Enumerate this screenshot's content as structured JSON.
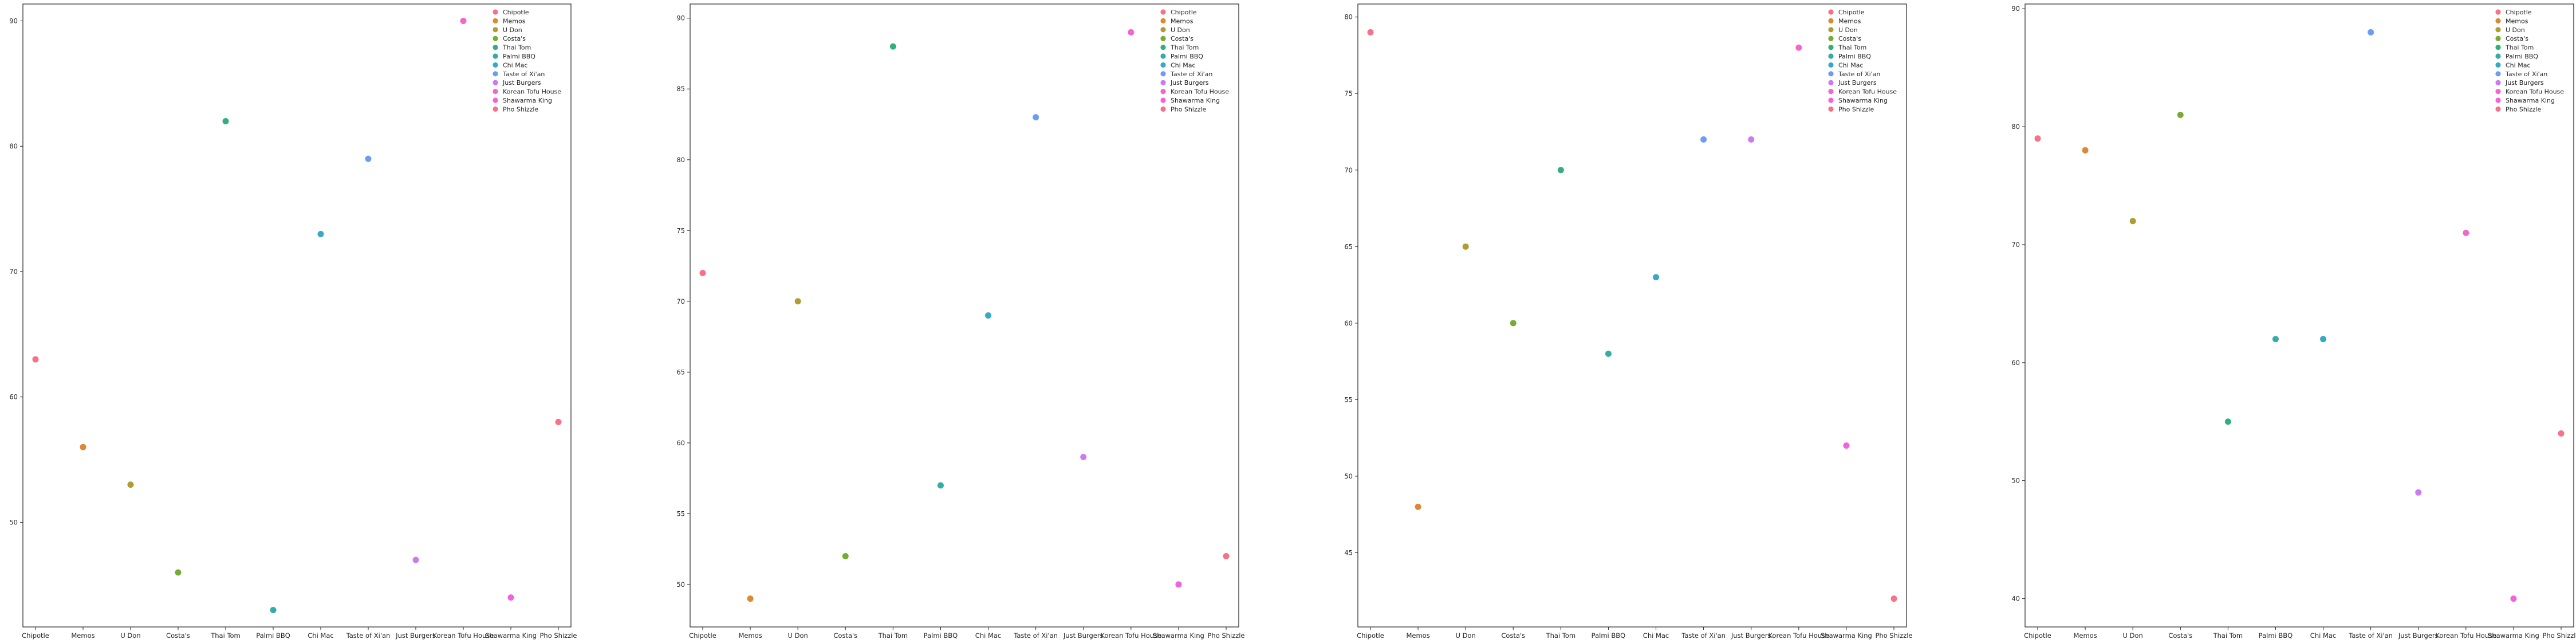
{
  "colors": [
    "#f77189",
    "#dc8932",
    "#ae9d31",
    "#77ab31",
    "#33b07a",
    "#36ada4",
    "#38a9c5",
    "#6e9bf4",
    "#cc7af4",
    "#f565cc",
    "#f561dd"
  ],
  "chart_data": [
    {
      "type": "scatter",
      "title": "",
      "xlabel": "",
      "ylabel": "",
      "categories": [
        "Chipotle",
        "Memos",
        "U Don",
        "Costa's",
        "Thai Tom",
        "Palmi BBQ",
        "Chi Mac",
        "Taste of Xi'an",
        "Just Burgers",
        "Korean Tofu House",
        "Shawarma King",
        "Pho Shizzle"
      ],
      "series": [
        {
          "name": "Chipotle",
          "x": "Chipotle",
          "y": 63
        },
        {
          "name": "Memos",
          "x": "Memos",
          "y": 56
        },
        {
          "name": "U Don",
          "x": "U Don",
          "y": 53
        },
        {
          "name": "Costa's",
          "x": "Costa's",
          "y": 46
        },
        {
          "name": "Thai Tom",
          "x": "Thai Tom",
          "y": 82
        },
        {
          "name": "Palmi BBQ",
          "x": "Palmi BBQ",
          "y": 43
        },
        {
          "name": "Chi Mac",
          "x": "Chi Mac",
          "y": 73
        },
        {
          "name": "Taste of Xi'an",
          "x": "Taste of Xi'an",
          "y": 79
        },
        {
          "name": "Just Burgers",
          "x": "Just Burgers",
          "y": 47
        },
        {
          "name": "Korean Tofu House",
          "x": "Korean Tofu House",
          "y": 90
        },
        {
          "name": "Shawarma King",
          "x": "Shawarma King",
          "y": 44
        },
        {
          "name": "Pho Shizzle",
          "x": "Pho Shizzle",
          "y": 58
        }
      ],
      "yticks": [
        50,
        60,
        70,
        80,
        90
      ],
      "ylim": [
        41.65,
        91.35
      ],
      "legend": "top-right",
      "grid": false
    },
    {
      "type": "scatter",
      "title": "",
      "xlabel": "",
      "ylabel": "",
      "categories": [
        "Chipotle",
        "Memos",
        "U Don",
        "Costa's",
        "Thai Tom",
        "Palmi BBQ",
        "Chi Mac",
        "Taste of Xi'an",
        "Just Burgers",
        "Korean Tofu House",
        "Shawarma King",
        "Pho Shizzle"
      ],
      "series": [
        {
          "name": "Chipotle",
          "x": "Chipotle",
          "y": 72
        },
        {
          "name": "Memos",
          "x": "Memos",
          "y": 49
        },
        {
          "name": "U Don",
          "x": "U Don",
          "y": 70
        },
        {
          "name": "Costa's",
          "x": "Costa's",
          "y": 52
        },
        {
          "name": "Thai Tom",
          "x": "Thai Tom",
          "y": 88
        },
        {
          "name": "Palmi BBQ",
          "x": "Palmi BBQ",
          "y": 57
        },
        {
          "name": "Chi Mac",
          "x": "Chi Mac",
          "y": 69
        },
        {
          "name": "Taste of Xi'an",
          "x": "Taste of Xi'an",
          "y": 83
        },
        {
          "name": "Just Burgers",
          "x": "Just Burgers",
          "y": 59
        },
        {
          "name": "Korean Tofu House",
          "x": "Korean Tofu House",
          "y": 89
        },
        {
          "name": "Shawarma King",
          "x": "Shawarma King",
          "y": 50
        },
        {
          "name": "Pho Shizzle",
          "x": "Pho Shizzle",
          "y": 52
        }
      ],
      "yticks": [
        50,
        55,
        60,
        65,
        70,
        75,
        80,
        85,
        90
      ],
      "ylim": [
        47.0,
        91.0
      ],
      "legend": "top-right",
      "grid": false
    },
    {
      "type": "scatter",
      "title": "",
      "xlabel": "",
      "ylabel": "",
      "categories": [
        "Chipotle",
        "Memos",
        "U Don",
        "Costa's",
        "Thai Tom",
        "Palmi BBQ",
        "Chi Mac",
        "Taste of Xi'an",
        "Just Burgers",
        "Korean Tofu House",
        "Shawarma King",
        "Pho Shizzle"
      ],
      "series": [
        {
          "name": "Chipotle",
          "x": "Chipotle",
          "y": 79
        },
        {
          "name": "Memos",
          "x": "Memos",
          "y": 48
        },
        {
          "name": "U Don",
          "x": "U Don",
          "y": 65
        },
        {
          "name": "Costa's",
          "x": "Costa's",
          "y": 60
        },
        {
          "name": "Thai Tom",
          "x": "Thai Tom",
          "y": 70
        },
        {
          "name": "Palmi BBQ",
          "x": "Palmi BBQ",
          "y": 58
        },
        {
          "name": "Chi Mac",
          "x": "Chi Mac",
          "y": 63
        },
        {
          "name": "Taste of Xi'an",
          "x": "Taste of Xi'an",
          "y": 72
        },
        {
          "name": "Just Burgers",
          "x": "Just Burgers",
          "y": 72
        },
        {
          "name": "Korean Tofu House",
          "x": "Korean Tofu House",
          "y": 78
        },
        {
          "name": "Shawarma King",
          "x": "Shawarma King",
          "y": 52
        },
        {
          "name": "Pho Shizzle",
          "x": "Pho Shizzle",
          "y": 42
        }
      ],
      "yticks": [
        45,
        50,
        55,
        60,
        65,
        70,
        75,
        80
      ],
      "ylim": [
        40.15,
        80.85
      ],
      "legend": "top-right",
      "grid": false
    },
    {
      "type": "scatter",
      "title": "",
      "xlabel": "",
      "ylabel": "",
      "categories": [
        "Chipotle",
        "Memos",
        "U Don",
        "Costa's",
        "Thai Tom",
        "Palmi BBQ",
        "Chi Mac",
        "Taste of Xi'an",
        "Just Burgers",
        "Korean Tofu House",
        "Shawarma King",
        "Pho Shizzle"
      ],
      "series": [
        {
          "name": "Chipotle",
          "x": "Chipotle",
          "y": 79
        },
        {
          "name": "Memos",
          "x": "Memos",
          "y": 78
        },
        {
          "name": "U Don",
          "x": "U Don",
          "y": 72
        },
        {
          "name": "Costa's",
          "x": "Costa's",
          "y": 81
        },
        {
          "name": "Thai Tom",
          "x": "Thai Tom",
          "y": 55
        },
        {
          "name": "Palmi BBQ",
          "x": "Palmi BBQ",
          "y": 62
        },
        {
          "name": "Chi Mac",
          "x": "Chi Mac",
          "y": 62
        },
        {
          "name": "Taste of Xi'an",
          "x": "Taste of Xi'an",
          "y": 88
        },
        {
          "name": "Just Burgers",
          "x": "Just Burgers",
          "y": 49
        },
        {
          "name": "Korean Tofu House",
          "x": "Korean Tofu House",
          "y": 71
        },
        {
          "name": "Shawarma King",
          "x": "Shawarma King",
          "y": 40
        },
        {
          "name": "Pho Shizzle",
          "x": "Pho Shizzle",
          "y": 54
        }
      ],
      "yticks": [
        40,
        50,
        60,
        70,
        80,
        90
      ],
      "ylim": [
        37.6,
        90.4
      ],
      "legend": "top-right",
      "grid": false
    }
  ]
}
